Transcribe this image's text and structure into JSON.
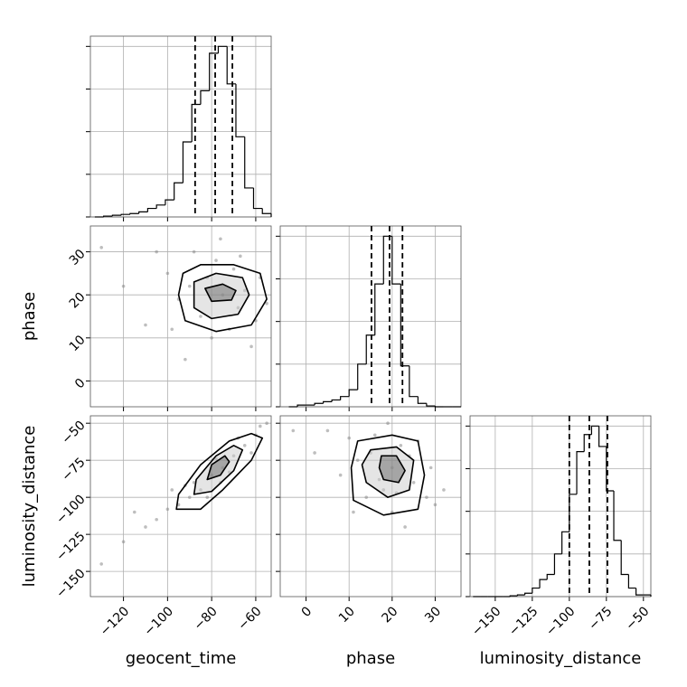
{
  "chart_data": [
    {
      "type": "histogram",
      "color": "#000000",
      "bins": [
        -133,
        -129,
        -125,
        -121,
        -117,
        -113,
        -109,
        -105,
        -101,
        -97,
        -93,
        -89,
        -85,
        -81,
        -77,
        -73,
        -69,
        -65,
        -61,
        -57,
        -53
      ],
      "values": [
        0,
        0.005,
        0.01,
        0.015,
        0.02,
        0.03,
        0.05,
        0.07,
        0.1,
        0.2,
        0.44,
        0.66,
        0.74,
        0.96,
        1.0,
        0.78,
        0.47,
        0.17,
        0.05,
        0.02
      ],
      "quantiles": [
        -87.5,
        -78.4,
        -70.6
      ],
      "xlim": [
        -135,
        -53
      ],
      "xticks": [
        {
          "value": -120,
          "label": "−120"
        },
        {
          "value": -100,
          "label": "−100"
        },
        {
          "value": -80,
          "label": "−80"
        },
        {
          "value": -60,
          "label": "−60"
        }
      ],
      "ylim": [
        0,
        1.06
      ],
      "yticks": [
        0,
        0.25,
        0.5,
        0.75,
        1
      ],
      "show_xticklabels": false,
      "show_yticklabels": false,
      "grid": true
    },
    {
      "type": "scatter",
      "color": "#888888",
      "ylabel": "phase",
      "x": [
        -75,
        -82,
        -68,
        -90,
        -60,
        -70,
        -85,
        -78,
        -65,
        -95,
        -100,
        -110,
        -72,
        -58,
        -88,
        -80,
        -120,
        -62,
        -105,
        -92,
        -130,
        -55,
        -76,
        -98,
        -67
      ],
      "y": [
        20,
        24,
        17,
        22,
        14,
        26,
        15,
        28,
        21,
        19,
        25,
        13,
        12,
        24,
        30,
        10,
        22,
        8,
        30,
        5,
        31,
        18,
        33,
        12,
        29
      ],
      "contours": [
        {
          "x": [
            -93,
            -85,
            -70,
            -58,
            -55,
            -62,
            -78,
            -92,
            -95
          ],
          "y": [
            25,
            27,
            27,
            25,
            19,
            13,
            11.5,
            14,
            20
          ]
        },
        {
          "x": [
            -88,
            -78,
            -66,
            -63,
            -68,
            -80,
            -88
          ],
          "y": [
            23,
            25,
            24,
            20,
            15.5,
            14.5,
            17
          ]
        },
        {
          "x": [
            -83,
            -75,
            -69,
            -71,
            -80
          ],
          "y": [
            21.5,
            22.5,
            21,
            18.8,
            18.5
          ]
        }
      ],
      "xlim": [
        -135,
        -53
      ],
      "xticks": [
        {
          "value": -120,
          "label": "−120"
        },
        {
          "value": -100,
          "label": "−100"
        },
        {
          "value": -80,
          "label": "−80"
        },
        {
          "value": -60,
          "label": "−60"
        }
      ],
      "ylim": [
        -6,
        36
      ],
      "yticks": [
        0,
        10,
        20,
        30
      ],
      "show_xticklabels": false,
      "show_yticklabels": true,
      "grid": true
    },
    {
      "type": "histogram",
      "color": "#000000",
      "bins": [
        -4,
        -2,
        0,
        2,
        4,
        6,
        8,
        10,
        12,
        14,
        16,
        18,
        20,
        22,
        24,
        26,
        28,
        30,
        32,
        34,
        36
      ],
      "values": [
        0,
        0.01,
        0.01,
        0.02,
        0.03,
        0.04,
        0.06,
        0.1,
        0.25,
        0.42,
        0.72,
        1.0,
        0.72,
        0.24,
        0.06,
        0.02,
        0.005,
        0,
        0,
        0
      ],
      "quantiles": [
        15.2,
        19.4,
        22.4
      ],
      "xlim": [
        -6,
        36
      ],
      "xticks": [
        0,
        10,
        20,
        30
      ],
      "ylim": [
        0,
        1.06
      ],
      "yticks": [
        0,
        0.25,
        0.5,
        0.75,
        1
      ],
      "show_xticklabels": false,
      "show_yticklabels": false,
      "grid": true
    },
    {
      "type": "scatter",
      "color": "#888888",
      "xlabel": "geocent_time",
      "ylabel": "luminosity_distance",
      "x": [
        -75,
        -80,
        -70,
        -85,
        -65,
        -90,
        -60,
        -95,
        -100,
        -72,
        -78,
        -68,
        -88,
        -105,
        -110,
        -58,
        -82,
        -92,
        -62,
        -120,
        -115,
        -55,
        -130,
        -98,
        -76
      ],
      "y": [
        -80,
        -85,
        -72,
        -95,
        -65,
        -100,
        -58,
        -105,
        -108,
        -83,
        -74,
        -60,
        -90,
        -115,
        -120,
        -52,
        -100,
        -92,
        -70,
        -130,
        -110,
        -50,
        -145,
        -95,
        -90
      ],
      "contours": [
        {
          "x": [
            -96,
            -85,
            -75,
            -62,
            -57,
            -62,
            -72,
            -85,
            -95
          ],
          "y": [
            -108,
            -108,
            -95,
            -75,
            -60,
            -57,
            -62,
            -78,
            -98
          ]
        },
        {
          "x": [
            -88,
            -80,
            -70,
            -66,
            -70,
            -78,
            -87
          ],
          "y": [
            -98,
            -96,
            -82,
            -68,
            -65,
            -72,
            -88
          ]
        },
        {
          "x": [
            -82,
            -76,
            -72,
            -74,
            -80
          ],
          "y": [
            -88,
            -85,
            -76,
            -72,
            -78
          ]
        }
      ],
      "xlim": [
        -135,
        -53
      ],
      "xticks": [
        {
          "value": -120,
          "label": "−120"
        },
        {
          "value": -100,
          "label": "−100"
        },
        {
          "value": -80,
          "label": "−80"
        },
        {
          "value": -60,
          "label": "−60"
        }
      ],
      "ylim": [
        -167,
        -45
      ],
      "yticks": [
        {
          "value": -150,
          "label": "−150"
        },
        {
          "value": -125,
          "label": "−125"
        },
        {
          "value": -100,
          "label": "−100"
        },
        {
          "value": -75,
          "label": "−75"
        },
        {
          "value": -50,
          "label": "−50"
        }
      ],
      "show_xticklabels": true,
      "show_yticklabels": true,
      "grid": true
    },
    {
      "type": "scatter",
      "color": "#888888",
      "xlabel": "phase",
      "x": [
        20,
        15,
        25,
        18,
        22,
        12,
        28,
        10,
        24,
        17,
        30,
        5,
        20,
        14,
        26,
        8,
        32,
        -3,
        19,
        23,
        11,
        29,
        2,
        16,
        21
      ],
      "y": [
        -80,
        -70,
        -90,
        -95,
        -65,
        -75,
        -100,
        -60,
        -72,
        -88,
        -105,
        -55,
        -110,
        -100,
        -62,
        -85,
        -95,
        -55,
        -50,
        -120,
        -110,
        -80,
        -70,
        -58,
        -97
      ],
      "contours": [
        {
          "x": [
            12,
            20,
            26,
            27.5,
            26,
            18,
            11,
            10.5
          ],
          "y": [
            -62,
            -58,
            -62,
            -85,
            -108,
            -112,
            -102,
            -80
          ]
        },
        {
          "x": [
            15,
            21,
            25,
            24,
            19,
            14,
            13
          ],
          "y": [
            -68,
            -66,
            -75,
            -95,
            -100,
            -90,
            -78
          ]
        },
        {
          "x": [
            17.5,
            21,
            23,
            21.5,
            18,
            17
          ],
          "y": [
            -72,
            -72,
            -82,
            -90,
            -88,
            -80
          ]
        }
      ],
      "xlim": [
        -6,
        36
      ],
      "xticks": [
        0,
        10,
        20,
        30
      ],
      "ylim": [
        -167,
        -45
      ],
      "yticks": [
        {
          "value": -150,
          "label": "−150"
        },
        {
          "value": -125,
          "label": "−125"
        },
        {
          "value": -100,
          "label": "−100"
        },
        {
          "value": -75,
          "label": "−75"
        },
        {
          "value": -50,
          "label": "−50"
        }
      ],
      "show_xticklabels": true,
      "show_yticklabels": false,
      "grid": true
    },
    {
      "type": "histogram",
      "color": "#000000",
      "xlabel": "luminosity_distance",
      "bins": [
        -165,
        -160,
        -155,
        -150,
        -145,
        -140,
        -135,
        -130,
        -125,
        -120,
        -115,
        -110,
        -105,
        -100,
        -95,
        -90,
        -85,
        -80,
        -75,
        -70,
        -65,
        -60,
        -55,
        -50,
        -45
      ],
      "values": [
        0,
        0,
        0,
        0,
        0,
        0.005,
        0.01,
        0.02,
        0.05,
        0.1,
        0.13,
        0.25,
        0.38,
        0.6,
        0.85,
        0.95,
        1.0,
        0.88,
        0.62,
        0.33,
        0.13,
        0.05,
        0.01,
        0.01
      ],
      "quantiles": [
        -100,
        -86.5,
        -74.3
      ],
      "xlim": [
        -167,
        -45
      ],
      "xticks": [
        {
          "value": -150,
          "label": "−150"
        },
        {
          "value": -125,
          "label": "−125"
        },
        {
          "value": -100,
          "label": "−100"
        },
        {
          "value": -75,
          "label": "−75"
        },
        {
          "value": -50,
          "label": "−50"
        }
      ],
      "ylim": [
        0,
        1.06
      ],
      "yticks": [
        0,
        0.25,
        0.5,
        0.75,
        1
      ],
      "show_xticklabels": true,
      "show_yticklabels": false,
      "grid": true
    }
  ]
}
